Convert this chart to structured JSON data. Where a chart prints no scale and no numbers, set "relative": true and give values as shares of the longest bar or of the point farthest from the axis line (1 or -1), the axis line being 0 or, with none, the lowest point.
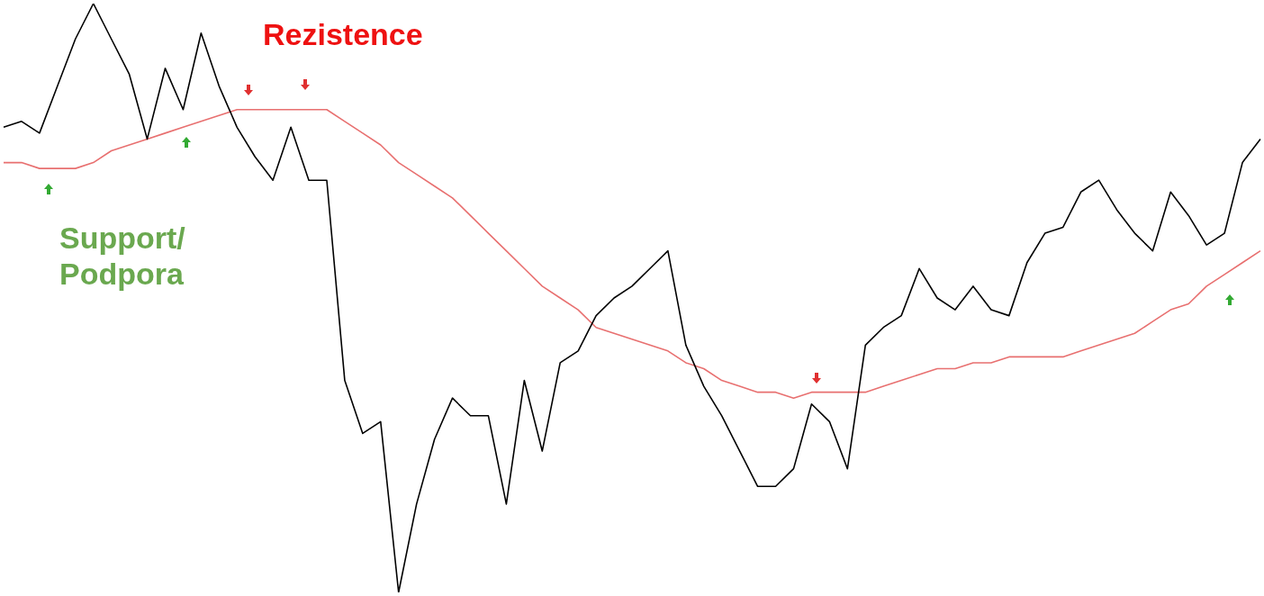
{
  "chart_data": {
    "type": "line",
    "relative": true,
    "marker": "none",
    "categories": [
      null,
      null,
      null,
      null,
      null,
      null,
      null,
      null,
      null,
      null,
      null,
      null,
      null,
      null,
      null,
      null,
      null,
      null,
      null,
      null,
      null,
      null,
      null,
      null,
      null,
      null,
      null,
      null,
      null,
      null,
      null,
      null,
      null,
      null,
      null,
      null,
      null,
      null,
      null,
      null,
      null,
      null,
      null,
      null,
      null,
      null,
      null,
      null,
      null,
      null,
      null,
      null,
      null,
      null,
      null,
      null,
      null,
      null,
      null,
      null,
      null,
      null,
      null,
      null,
      null,
      null,
      null,
      null,
      null,
      null,
      null
    ],
    "series": [
      {
        "color": "#000000",
        "values": [
          0.79,
          0.8,
          0.78,
          0.86,
          0.94,
          1,
          0.94,
          0.88,
          0.77,
          0.89,
          0.82,
          0.95,
          0.86,
          0.79,
          0.74,
          0.7,
          0.79,
          0.7,
          0.7,
          0.36,
          0.27,
          0.29,
          0,
          0.15,
          0.26,
          0.33,
          0.3,
          0.3,
          0.15,
          0.36,
          0.24,
          0.39,
          0.41,
          0.47,
          0.5,
          0.52,
          0.55,
          0.58,
          0.42,
          0.35,
          0.3,
          0.24,
          0.18,
          0.18,
          0.21,
          0.32,
          0.29,
          0.21,
          0.42,
          0.45,
          0.47,
          0.55,
          0.5,
          0.48,
          0.52,
          0.48,
          0.47,
          0.56,
          0.61,
          0.62,
          0.68,
          0.7,
          0.65,
          0.61,
          0.58,
          0.68,
          0.64,
          0.59,
          0.61,
          0.73,
          0.77
        ]
      },
      {
        "color": "#e87070",
        "values": [
          0.73,
          0.73,
          0.72,
          0.72,
          0.72,
          0.73,
          0.75,
          0.76,
          0.77,
          0.78,
          0.79,
          0.8,
          0.81,
          0.82,
          0.82,
          0.82,
          0.82,
          0.82,
          0.82,
          0.8,
          0.78,
          0.76,
          0.73,
          0.71,
          0.69,
          0.67,
          0.64,
          0.61,
          0.58,
          0.55,
          0.52,
          0.5,
          0.48,
          0.45,
          0.44,
          0.43,
          0.42,
          0.41,
          0.39,
          0.38,
          0.36,
          0.35,
          0.34,
          0.34,
          0.33,
          0.34,
          0.34,
          0.34,
          0.34,
          0.35,
          0.36,
          0.37,
          0.38,
          0.38,
          0.39,
          0.39,
          0.4,
          0.4,
          0.4,
          0.4,
          0.41,
          0.42,
          0.43,
          0.44,
          0.46,
          0.48,
          0.49,
          0.52,
          0.54,
          0.56,
          0.58
        ]
      }
    ],
    "annotations": [
      "Rezistence",
      "Support/\nPodpora"
    ]
  }
}
